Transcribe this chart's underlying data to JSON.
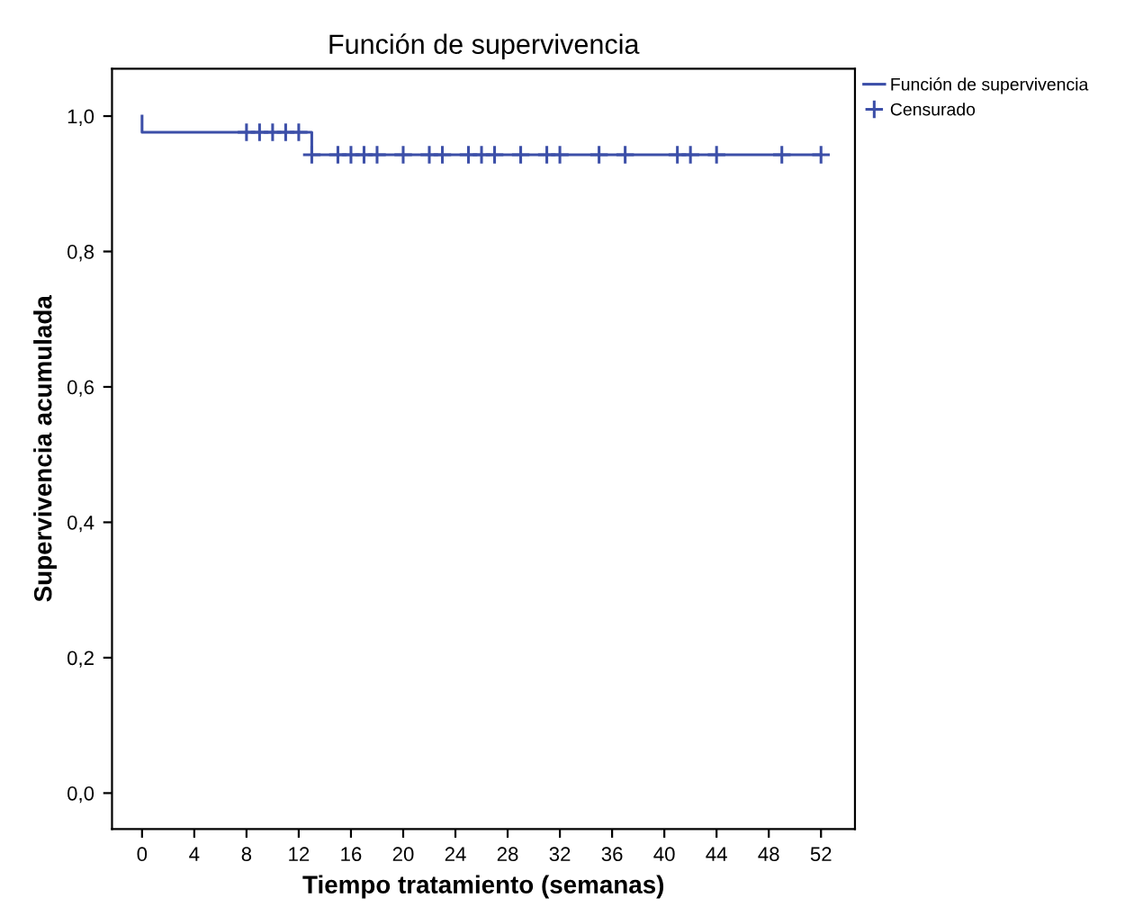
{
  "chart_data": {
    "type": "step",
    "title": "Función de supervivencia",
    "xlabel": "Tiempo tratamiento (semanas)",
    "ylabel": "Supervivencia acumulada",
    "xlim": [
      -2.3,
      54.6
    ],
    "xticks": [
      0,
      4,
      8,
      12,
      16,
      20,
      24,
      28,
      32,
      36,
      40,
      44,
      48,
      52
    ],
    "ylim": [
      -0.053,
      1.07
    ],
    "yticks": [
      {
        "value": 0,
        "label": "0,0"
      },
      {
        "value": 0.2,
        "label": "0,2"
      },
      {
        "value": 0.4,
        "label": "0,4"
      },
      {
        "value": 0.6,
        "label": "0,6"
      },
      {
        "value": 0.8,
        "label": "0,8"
      },
      {
        "value": 1,
        "label": "1,0"
      }
    ],
    "grid": false,
    "legend": "top right",
    "line_style": "solid",
    "series": [
      {
        "name": "Función de supervivencia",
        "color": "#3c4fa8",
        "x": [
          0,
          0,
          13,
          52
        ],
        "values": [
          1,
          0.976,
          0.943,
          0.943
        ]
      },
      {
        "name": "Censurado",
        "type": "scatter",
        "marker": "cross",
        "color": "#3c4fa8",
        "x": [
          8,
          9,
          10,
          11,
          12,
          13,
          15,
          16,
          17,
          18,
          20,
          22,
          23,
          25,
          26,
          27,
          29,
          31,
          32,
          35,
          37,
          41,
          42,
          44,
          49,
          52
        ],
        "values": [
          0.976,
          0.976,
          0.976,
          0.976,
          0.976,
          0.943,
          0.943,
          0.943,
          0.943,
          0.943,
          0.943,
          0.943,
          0.943,
          0.943,
          0.943,
          0.943,
          0.943,
          0.943,
          0.943,
          0.943,
          0.943,
          0.943,
          0.943,
          0.943,
          0.943,
          0.943
        ]
      }
    ]
  }
}
